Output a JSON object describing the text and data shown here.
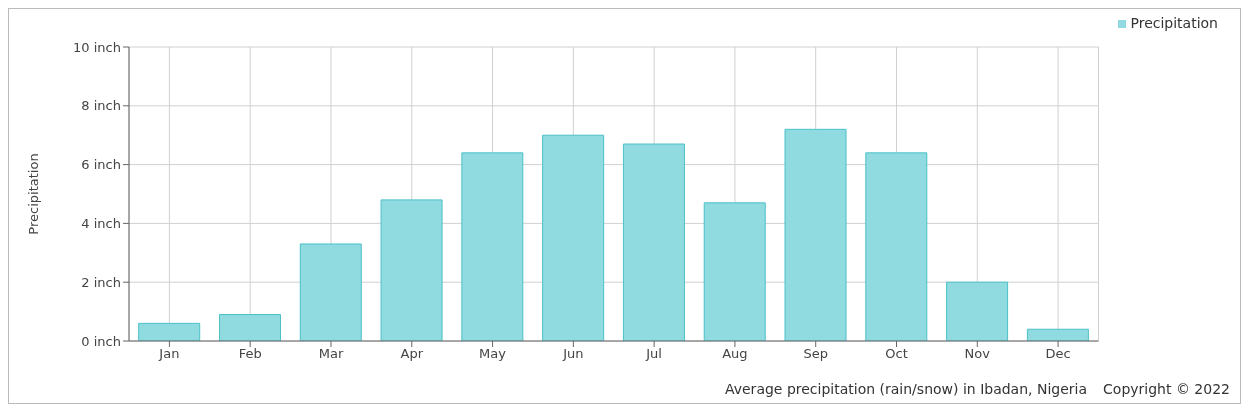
{
  "chart_data": {
    "type": "bar",
    "ylabel": "Precipitation",
    "categories": [
      "Jan",
      "Feb",
      "Mar",
      "Apr",
      "May",
      "Jun",
      "Jul",
      "Aug",
      "Sep",
      "Oct",
      "Nov",
      "Dec"
    ],
    "series": [
      {
        "name": "Precipitation",
        "color": "#8fdbe0",
        "values": [
          0.6,
          0.9,
          3.3,
          4.8,
          6.4,
          7.0,
          6.7,
          4.7,
          7.2,
          6.4,
          2.0,
          0.4
        ]
      }
    ],
    "ylim": [
      0,
      10
    ],
    "yticks": [
      {
        "value": 0,
        "label": "0 inch"
      },
      {
        "value": 2,
        "label": "2 inch"
      },
      {
        "value": 4,
        "label": "4 inch"
      },
      {
        "value": 6,
        "label": "6 inch"
      },
      {
        "value": 8,
        "label": "8 inch"
      },
      {
        "value": 10,
        "label": "10 inch"
      }
    ],
    "grid": true,
    "legend": "top right",
    "annotations": [
      "Average precipitation (rain/snow) in Ibadan, Nigeria",
      "Copyright © 2022"
    ]
  }
}
